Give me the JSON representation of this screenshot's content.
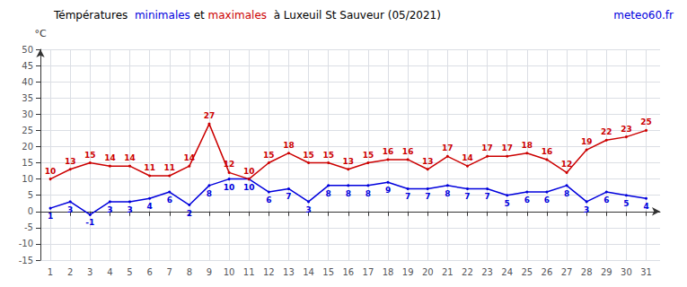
{
  "chart_data": {
    "type": "line",
    "title_parts": [
      {
        "text": "Témpératures  ",
        "color": "black"
      },
      {
        "text": "minimales",
        "color": "#0000dd"
      },
      {
        "text": " et ",
        "color": "black"
      },
      {
        "text": "maximales",
        "color": "#cc0000"
      },
      {
        "text": "  à Luxeuil St Sauveur (05/2021)",
        "color": "black"
      }
    ],
    "annotations": [
      {
        "text": "meteo60.fr",
        "color": "#0000dd"
      }
    ],
    "ylabel": "°C",
    "x": [
      1,
      2,
      3,
      4,
      5,
      6,
      7,
      8,
      9,
      10,
      11,
      12,
      13,
      14,
      15,
      16,
      17,
      18,
      19,
      20,
      21,
      22,
      23,
      24,
      25,
      26,
      27,
      28,
      29,
      30,
      31
    ],
    "series": [
      {
        "name": "minimales",
        "color": "#0000dd",
        "values": [
          1,
          3,
          -1,
          3,
          3,
          4,
          6,
          2,
          8,
          10,
          10,
          6,
          7,
          3,
          8,
          8,
          8,
          9,
          7,
          7,
          8,
          7,
          7,
          5,
          6,
          6,
          8,
          3,
          6,
          5,
          4
        ]
      },
      {
        "name": "maximales",
        "color": "#cc0000",
        "values": [
          10,
          13,
          15,
          14,
          14,
          11,
          11,
          14,
          27,
          12,
          10,
          15,
          18,
          15,
          15,
          13,
          15,
          16,
          16,
          13,
          17,
          14,
          17,
          17,
          18,
          16,
          12,
          19,
          22,
          23,
          25
        ]
      }
    ],
    "xlim": [
      0.5,
      31.7
    ],
    "xticks": [
      1,
      2,
      3,
      4,
      5,
      6,
      7,
      8,
      9,
      10,
      11,
      12,
      13,
      14,
      15,
      16,
      17,
      18,
      19,
      20,
      21,
      22,
      23,
      24,
      25,
      26,
      27,
      28,
      29,
      30,
      31
    ],
    "ylim": [
      -15,
      50
    ],
    "yticks": [
      -15,
      -10,
      -5,
      0,
      5,
      10,
      15,
      20,
      25,
      30,
      35,
      40,
      45,
      50
    ],
    "grid": true,
    "data_labels": true
  }
}
